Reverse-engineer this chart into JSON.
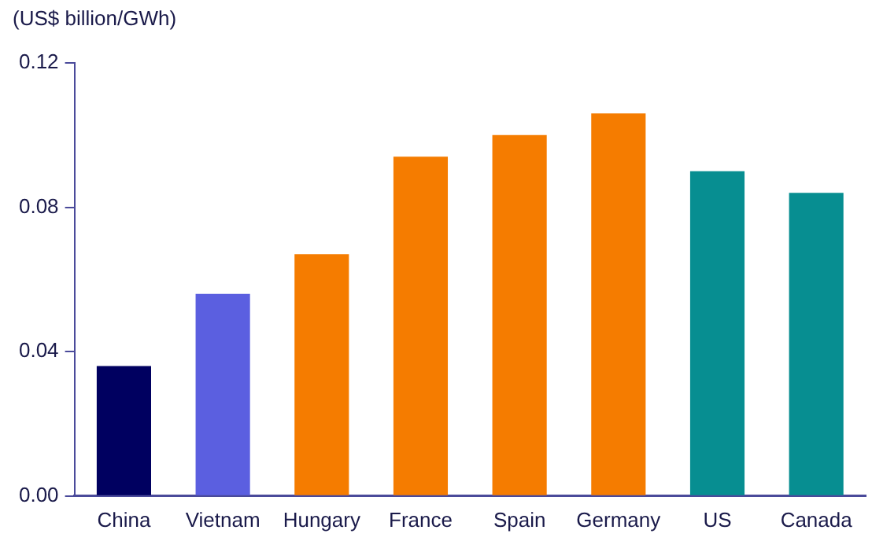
{
  "chart_data": {
    "type": "bar",
    "ylabel": "(US$ billion/GWh)",
    "categories": [
      "China",
      "Vietnam",
      "Hungary",
      "France",
      "Spain",
      "Germany",
      "US",
      "Canada"
    ],
    "values": [
      0.036,
      0.056,
      0.067,
      0.094,
      0.1,
      0.106,
      0.09,
      0.084
    ],
    "colors": [
      "#000060",
      "#5b5fe0",
      "#f57c00",
      "#f57c00",
      "#f57c00",
      "#f57c00",
      "#078e91",
      "#078e91"
    ],
    "ylim": [
      0,
      0.12
    ],
    "yticks": [
      {
        "value": 0,
        "label": "0.00"
      },
      {
        "value": 0.04,
        "label": "0.04"
      },
      {
        "value": 0.08,
        "label": "0.08"
      },
      {
        "value": 0.12,
        "label": "0.12"
      }
    ],
    "grid": false,
    "legend": false
  }
}
